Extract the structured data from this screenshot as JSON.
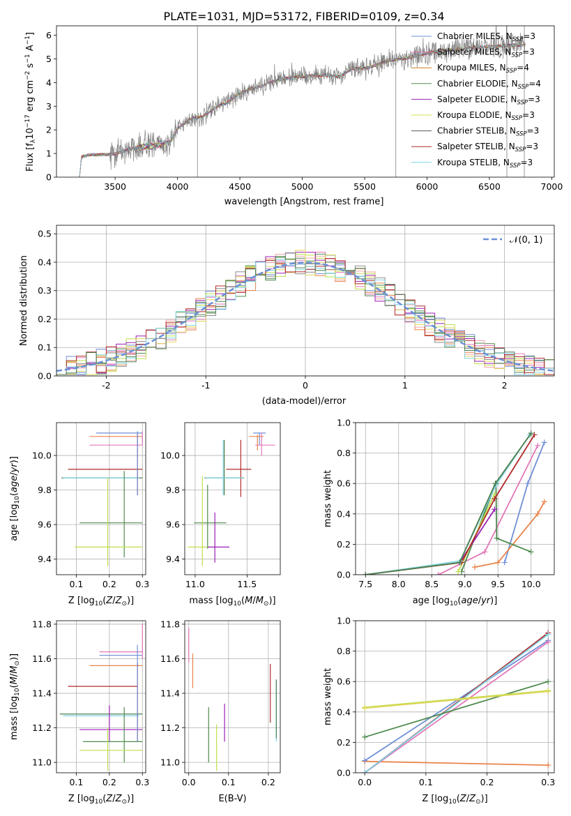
{
  "figure": {
    "title": "PLATE=1031, MJD=53172, FIBERID=0109, z=0.34"
  },
  "colors": {
    "model_series": [
      "#6f8fd6",
      "#e8834a",
      "#e277b8",
      "#4e8a4e",
      "#f1a6a6",
      "#bfe04a",
      "#9a1fb5",
      "#e0d45a",
      "#8b8b8b",
      "#b12a2a",
      "#7fd3e3",
      "#4c7f4c"
    ],
    "legend_colors": [
      "#6f8fd6",
      "#e277b8",
      "#d17a1e",
      "#4e8a4e",
      "#9a1fb5",
      "#d6e04a",
      "#555555",
      "#b12a2a",
      "#7fd3e3"
    ],
    "data_spectrum": "#808080",
    "normal_curve": "#6a8fd6"
  },
  "legend_spectrum": [
    {
      "name": "Chabrier MILES",
      "nssp": "=3"
    },
    {
      "name": "Salpeter MILES",
      "nssp": "=3"
    },
    {
      "name": "Kroupa MILES",
      "nssp": "=4"
    },
    {
      "name": "Chabrier ELODIE",
      "nssp": "=4"
    },
    {
      "name": "Salpeter ELODIE",
      "nssp": "=3"
    },
    {
      "name": "Kroupa ELODIE",
      "nssp": "=3"
    },
    {
      "name": "Chabrier STELIB",
      "nssp": "=3"
    },
    {
      "name": "Salpeter STELIB",
      "nssp": "=3"
    },
    {
      "name": "Kroupa STELIB",
      "nssp": "=3"
    }
  ],
  "legend_hist": {
    "label": "𝒩(0, 1)"
  },
  "chart_data": [
    {
      "id": "spectrum",
      "type": "line",
      "title": "PLATE=1031, MJD=53172, FIBERID=0109, z=0.34",
      "xlabel": "wavelength [Angstrom, rest frame]",
      "ylabel": "Flux [f_λ 10^-17 erg cm^-2 s^-1 A^-1]",
      "xlim": [
        3030,
        7020
      ],
      "ylim": [
        0,
        6.4
      ],
      "xticks": [
        3500,
        4000,
        4500,
        5000,
        5500,
        6000,
        6500,
        7000
      ],
      "yticks": [
        0,
        1,
        2,
        3,
        4,
        5,
        6
      ],
      "grid": false,
      "legend": "top-right",
      "model_envelope": [
        [
          3215,
          0
        ],
        [
          3230,
          0.85
        ],
        [
          3300,
          0.95
        ],
        [
          3400,
          0.95
        ],
        [
          3500,
          0.98
        ],
        [
          3600,
          1.15
        ],
        [
          3700,
          1.3
        ],
        [
          3800,
          1.3
        ],
        [
          3900,
          1.45
        ],
        [
          3950,
          1.5
        ],
        [
          4000,
          2.05
        ],
        [
          4100,
          2.45
        ],
        [
          4200,
          2.55
        ],
        [
          4300,
          2.95
        ],
        [
          4400,
          3.15
        ],
        [
          4500,
          3.55
        ],
        [
          4600,
          3.75
        ],
        [
          4700,
          3.9
        ],
        [
          4800,
          4.1
        ],
        [
          4900,
          4.2
        ],
        [
          5000,
          4.25
        ],
        [
          5100,
          4.3
        ],
        [
          5200,
          4.3
        ],
        [
          5300,
          4.25
        ],
        [
          5400,
          4.6
        ],
        [
          5500,
          4.6
        ],
        [
          5600,
          4.75
        ],
        [
          5700,
          4.95
        ],
        [
          5800,
          5.0
        ],
        [
          5900,
          5.1
        ],
        [
          6000,
          5.25
        ],
        [
          6200,
          5.4
        ],
        [
          6400,
          5.5
        ],
        [
          6600,
          5.55
        ],
        [
          6800,
          5.6
        ]
      ],
      "data_range": [
        3215,
        6790
      ]
    },
    {
      "id": "residual-hist",
      "type": "line",
      "xlabel": "(data-model)/error",
      "ylabel": "Normed distribution",
      "xlim": [
        -2.5,
        2.5
      ],
      "ylim": [
        0,
        0.53
      ],
      "xticks": [
        -2,
        -1,
        0,
        1,
        2
      ],
      "yticks": [
        0.0,
        0.1,
        0.2,
        0.3,
        0.4,
        0.5
      ],
      "grid": true,
      "legend": "top-right",
      "bin_width": 0.1,
      "series": [
        {
          "name": "𝒩(0, 1)",
          "style": "dashed"
        }
      ]
    },
    {
      "id": "age-z",
      "type": "scatter",
      "xlabel": "Z [log10(Z/Z⊙)]",
      "ylabel": "age [log10(age/yr)]",
      "xlim": [
        0.04,
        0.31
      ],
      "ylim": [
        9.31,
        10.19
      ],
      "xticks": [
        0.1,
        0.2,
        0.3
      ],
      "yticks": [
        9.4,
        9.6,
        9.8,
        10.0
      ],
      "grid": true,
      "points": [
        {
          "c": 0,
          "x": 0.24,
          "y": 10.13,
          "xe": [
            0.16,
            0.3
          ],
          "ye": [
            10.13,
            10.13
          ]
        },
        {
          "c": 1,
          "x": 0.23,
          "y": 10.11,
          "xe": [
            0.14,
            0.3
          ],
          "ye": [
            10.11,
            10.11
          ]
        },
        {
          "c": 2,
          "x": 0.24,
          "y": 10.06,
          "xe": [
            0.14,
            0.3
          ],
          "ye": [
            10.06,
            10.06
          ]
        },
        {
          "c": 9,
          "x": 0.19,
          "y": 9.92,
          "xe": [
            0.075,
            0.3
          ],
          "ye": [
            9.92,
            9.92
          ]
        },
        {
          "c": 11,
          "x": 0.18,
          "y": 9.87,
          "xe": [
            0.055,
            0.3
          ],
          "ye": [
            9.87,
            9.87
          ]
        },
        {
          "c": 10,
          "x": 0.18,
          "y": 9.87,
          "xe": [
            0.06,
            0.29
          ],
          "ye": [
            9.87,
            9.87
          ]
        },
        {
          "c": 3,
          "x": 0.245,
          "y": 9.61,
          "xe": [
            0.11,
            0.3
          ],
          "ye": [
            9.41,
            9.91
          ]
        },
        {
          "c": 5,
          "x": 0.195,
          "y": 9.47,
          "xe": [
            0.095,
            0.3
          ],
          "ye": [
            9.36,
            9.87
          ]
        },
        {
          "c": 9,
          "x": 0.285,
          "y": 10.1,
          "xe": [
            0.285,
            0.285
          ],
          "ye": [
            9.77,
            10.13
          ]
        },
        {
          "c": 0,
          "x": 0.285,
          "y": 10.1,
          "xe": [
            0.285,
            0.285
          ],
          "ye": [
            9.77,
            10.14
          ]
        },
        {
          "c": 2,
          "x": 0.3,
          "y": 10.1,
          "xe": [
            0.3,
            0.3
          ],
          "ye": [
            10.06,
            10.14
          ]
        }
      ]
    },
    {
      "id": "age-mass",
      "type": "scatter",
      "xlabel": "mass [log10(M/M⊙)]",
      "ylabel": "",
      "xlim": [
        10.9,
        11.82
      ],
      "ylim": [
        9.31,
        10.19
      ],
      "xticks": [
        11.0,
        11.5
      ],
      "yticks": [
        9.4,
        9.6,
        9.8,
        10.0
      ],
      "grid": true,
      "points": [
        {
          "c": 0,
          "x": 11.62,
          "y": 10.13,
          "xe": [
            11.56,
            11.68
          ],
          "ye": [
            10.06,
            10.13
          ]
        },
        {
          "c": 1,
          "x": 11.6,
          "y": 10.11,
          "xe": [
            11.52,
            11.66
          ],
          "ye": [
            10.03,
            10.12
          ]
        },
        {
          "c": 2,
          "x": 11.64,
          "y": 10.06,
          "xe": [
            11.58,
            11.77
          ],
          "ye": [
            10.0,
            10.13
          ]
        },
        {
          "c": 9,
          "x": 11.44,
          "y": 9.92,
          "xe": [
            11.3,
            11.54
          ],
          "ye": [
            9.76,
            10.09
          ]
        },
        {
          "c": 11,
          "x": 11.28,
          "y": 9.87,
          "xe": [
            11.09,
            11.47
          ],
          "ye": [
            9.77,
            10.09
          ]
        },
        {
          "c": 10,
          "x": 11.27,
          "y": 9.87,
          "xe": [
            11.1,
            11.46
          ],
          "ye": [
            9.77,
            10.09
          ]
        },
        {
          "c": 3,
          "x": 11.12,
          "y": 9.61,
          "xe": [
            10.99,
            11.3
          ],
          "ye": [
            9.46,
            9.83
          ]
        },
        {
          "c": 5,
          "x": 11.07,
          "y": 9.47,
          "xe": [
            10.93,
            11.14
          ],
          "ye": [
            9.36,
            9.88
          ]
        },
        {
          "c": 6,
          "x": 11.19,
          "y": 9.47,
          "xe": [
            11.12,
            11.33
          ],
          "ye": [
            9.38,
            9.67
          ]
        }
      ]
    },
    {
      "id": "weight-age",
      "type": "line",
      "xlabel": "age [log10(age/yr)]",
      "ylabel": "mass weight",
      "xlim": [
        7.35,
        10.35
      ],
      "ylim": [
        0,
        1.0
      ],
      "xticks": [
        7.5,
        8.0,
        8.5,
        9.0,
        9.5,
        10.0
      ],
      "yticks": [
        0.0,
        0.2,
        0.4,
        0.6,
        0.8,
        1.0
      ],
      "grid": true,
      "series": [
        {
          "c": 0,
          "points": [
            [
              9.6,
              0.08
            ],
            [
              9.95,
              0.6
            ],
            [
              10.2,
              0.87
            ]
          ]
        },
        {
          "c": 1,
          "points": [
            [
              9.15,
              0.05
            ],
            [
              9.5,
              0.08
            ],
            [
              10.1,
              0.4
            ],
            [
              10.2,
              0.48
            ]
          ]
        },
        {
          "c": 2,
          "points": [
            [
              8.6,
              0.0
            ],
            [
              9.3,
              0.15
            ],
            [
              10.1,
              0.85
            ]
          ]
        },
        {
          "c": 3,
          "points": [
            [
              8.95,
              0.02
            ],
            [
              9.47,
              0.6
            ],
            [
              9.48,
              0.24
            ],
            [
              10.0,
              0.15
            ]
          ]
        },
        {
          "c": 6,
          "points": [
            [
              8.92,
              0.08
            ],
            [
              9.45,
              0.43
            ]
          ]
        },
        {
          "c": 5,
          "points": [
            [
              8.9,
              0.02
            ],
            [
              9.45,
              0.53
            ]
          ]
        },
        {
          "c": 9,
          "points": [
            [
              7.5,
              0.0
            ],
            [
              8.95,
              0.08
            ],
            [
              9.45,
              0.5
            ],
            [
              10.05,
              0.92
            ]
          ]
        },
        {
          "c": 10,
          "points": [
            [
              7.5,
              0.0
            ],
            [
              8.93,
              0.09
            ],
            [
              9.47,
              0.59
            ],
            [
              9.98,
              0.92
            ]
          ]
        },
        {
          "c": 11,
          "points": [
            [
              7.5,
              0.0
            ],
            [
              8.92,
              0.08
            ],
            [
              9.46,
              0.6
            ],
            [
              10.0,
              0.93
            ]
          ]
        }
      ]
    },
    {
      "id": "mass-z",
      "type": "scatter",
      "xlabel": "Z [log10(Z/Z⊙)]",
      "ylabel": "mass [log10(M/M⊙)]",
      "xlim": [
        0.04,
        0.31
      ],
      "ylim": [
        10.94,
        11.82
      ],
      "xticks": [
        0.1,
        0.2,
        0.3
      ],
      "yticks": [
        11.0,
        11.2,
        11.4,
        11.6,
        11.8
      ],
      "grid": true,
      "points": [
        {
          "c": 2,
          "x": 0.25,
          "y": 11.64,
          "xe": [
            0.17,
            0.3
          ],
          "ye": [
            11.64,
            11.64
          ]
        },
        {
          "c": 0,
          "x": 0.24,
          "y": 11.62,
          "xe": [
            0.17,
            0.3
          ],
          "ye": [
            11.62,
            11.62
          ]
        },
        {
          "c": 1,
          "x": 0.23,
          "y": 11.56,
          "xe": [
            0.14,
            0.3
          ],
          "ye": [
            11.56,
            11.56
          ]
        },
        {
          "c": 9,
          "x": 0.19,
          "y": 11.44,
          "xe": [
            0.075,
            0.285
          ],
          "ye": [
            11.44,
            11.44
          ]
        },
        {
          "c": 11,
          "x": 0.18,
          "y": 11.28,
          "xe": [
            0.05,
            0.3
          ],
          "ye": [
            11.28,
            11.28
          ]
        },
        {
          "c": 10,
          "x": 0.18,
          "y": 11.27,
          "xe": [
            0.06,
            0.29
          ],
          "ye": [
            11.27,
            11.27
          ]
        },
        {
          "c": 6,
          "x": 0.2,
          "y": 11.19,
          "xe": [
            0.11,
            0.3
          ],
          "ye": [
            11.12,
            11.33
          ]
        },
        {
          "c": 3,
          "x": 0.245,
          "y": 11.12,
          "xe": [
            0.12,
            0.3
          ],
          "ye": [
            11.0,
            11.32
          ]
        },
        {
          "c": 5,
          "x": 0.195,
          "y": 11.07,
          "xe": [
            0.11,
            0.3
          ],
          "ye": [
            10.95,
            11.2
          ]
        },
        {
          "c": 9,
          "x": 0.285,
          "y": 11.5,
          "xe": [
            0.285,
            0.285
          ],
          "ye": [
            11.12,
            11.58
          ]
        },
        {
          "c": 0,
          "x": 0.285,
          "y": 11.5,
          "xe": [
            0.285,
            0.285
          ],
          "ye": [
            11.12,
            11.68
          ]
        },
        {
          "c": 2,
          "x": 0.3,
          "y": 11.7,
          "xe": [
            0.3,
            0.3
          ],
          "ye": [
            11.6,
            11.8
          ]
        }
      ]
    },
    {
      "id": "mass-ebv",
      "type": "scatter",
      "xlabel": "E(B-V)",
      "ylabel": "",
      "xlim": [
        -0.01,
        0.23
      ],
      "ylim": [
        10.94,
        11.82
      ],
      "xticks": [
        0.0,
        0.1,
        0.2
      ],
      "yticks": [
        11.0,
        11.2,
        11.4,
        11.6,
        11.8
      ],
      "grid": true,
      "points": [
        {
          "c": 2,
          "x": 0.0,
          "y": 11.7,
          "xe": [
            0.0,
            0.0
          ],
          "ye": [
            11.58,
            11.78
          ]
        },
        {
          "c": 1,
          "x": 0.01,
          "y": 11.55,
          "xe": [
            0.01,
            0.01
          ],
          "ye": [
            11.43,
            11.63
          ]
        },
        {
          "c": 3,
          "x": 0.05,
          "y": 11.16,
          "xe": [
            0.05,
            0.05
          ],
          "ye": [
            11.0,
            11.32
          ]
        },
        {
          "c": 5,
          "x": 0.07,
          "y": 11.08,
          "xe": [
            0.07,
            0.07
          ],
          "ye": [
            10.95,
            11.22
          ]
        },
        {
          "c": 6,
          "x": 0.09,
          "y": 11.2,
          "xe": [
            0.09,
            0.09
          ],
          "ye": [
            11.12,
            11.34
          ]
        },
        {
          "c": 9,
          "x": 0.205,
          "y": 11.4,
          "xe": [
            0.205,
            0.205
          ],
          "ye": [
            11.23,
            11.57
          ]
        },
        {
          "c": 10,
          "x": 0.22,
          "y": 11.3,
          "xe": [
            0.22,
            0.22
          ],
          "ye": [
            11.12,
            11.47
          ]
        },
        {
          "c": 11,
          "x": 0.22,
          "y": 11.3,
          "xe": [
            0.22,
            0.22
          ],
          "ye": [
            11.14,
            11.48
          ]
        }
      ]
    },
    {
      "id": "weight-z",
      "type": "line",
      "xlabel": "Z [log10(Z/Z⊙)]",
      "ylabel": "mass weight",
      "xlim": [
        -0.015,
        0.31
      ],
      "ylim": [
        0,
        1.0
      ],
      "xticks": [
        0.0,
        0.1,
        0.2,
        0.3
      ],
      "yticks": [
        0.0,
        0.2,
        0.4,
        0.6,
        0.8,
        1.0
      ],
      "grid": true,
      "series": [
        {
          "c": 1,
          "points": [
            [
              0.0,
              0.075
            ],
            [
              0.3,
              0.05
            ]
          ]
        },
        {
          "c": 0,
          "points": [
            [
              0.0,
              0.08
            ],
            [
              0.3,
              0.87
            ]
          ]
        },
        {
          "c": 2,
          "points": [
            [
              0.0,
              0.0
            ],
            [
              0.3,
              0.86
            ]
          ]
        },
        {
          "c": 9,
          "points": [
            [
              0.0,
              0.0
            ],
            [
              0.3,
              0.92
            ]
          ]
        },
        {
          "c": 10,
          "points": [
            [
              0.0,
              0.0
            ],
            [
              0.3,
              0.91
            ]
          ]
        },
        {
          "c": 3,
          "points": [
            [
              0.0,
              0.235
            ],
            [
              0.3,
              0.6
            ]
          ]
        },
        {
          "c": 5,
          "points": [
            [
              0.0,
              0.43
            ],
            [
              0.3,
              0.54
            ]
          ]
        },
        {
          "c": 7,
          "points": [
            [
              0.0,
              0.425
            ],
            [
              0.3,
              0.535
            ]
          ]
        }
      ]
    }
  ]
}
